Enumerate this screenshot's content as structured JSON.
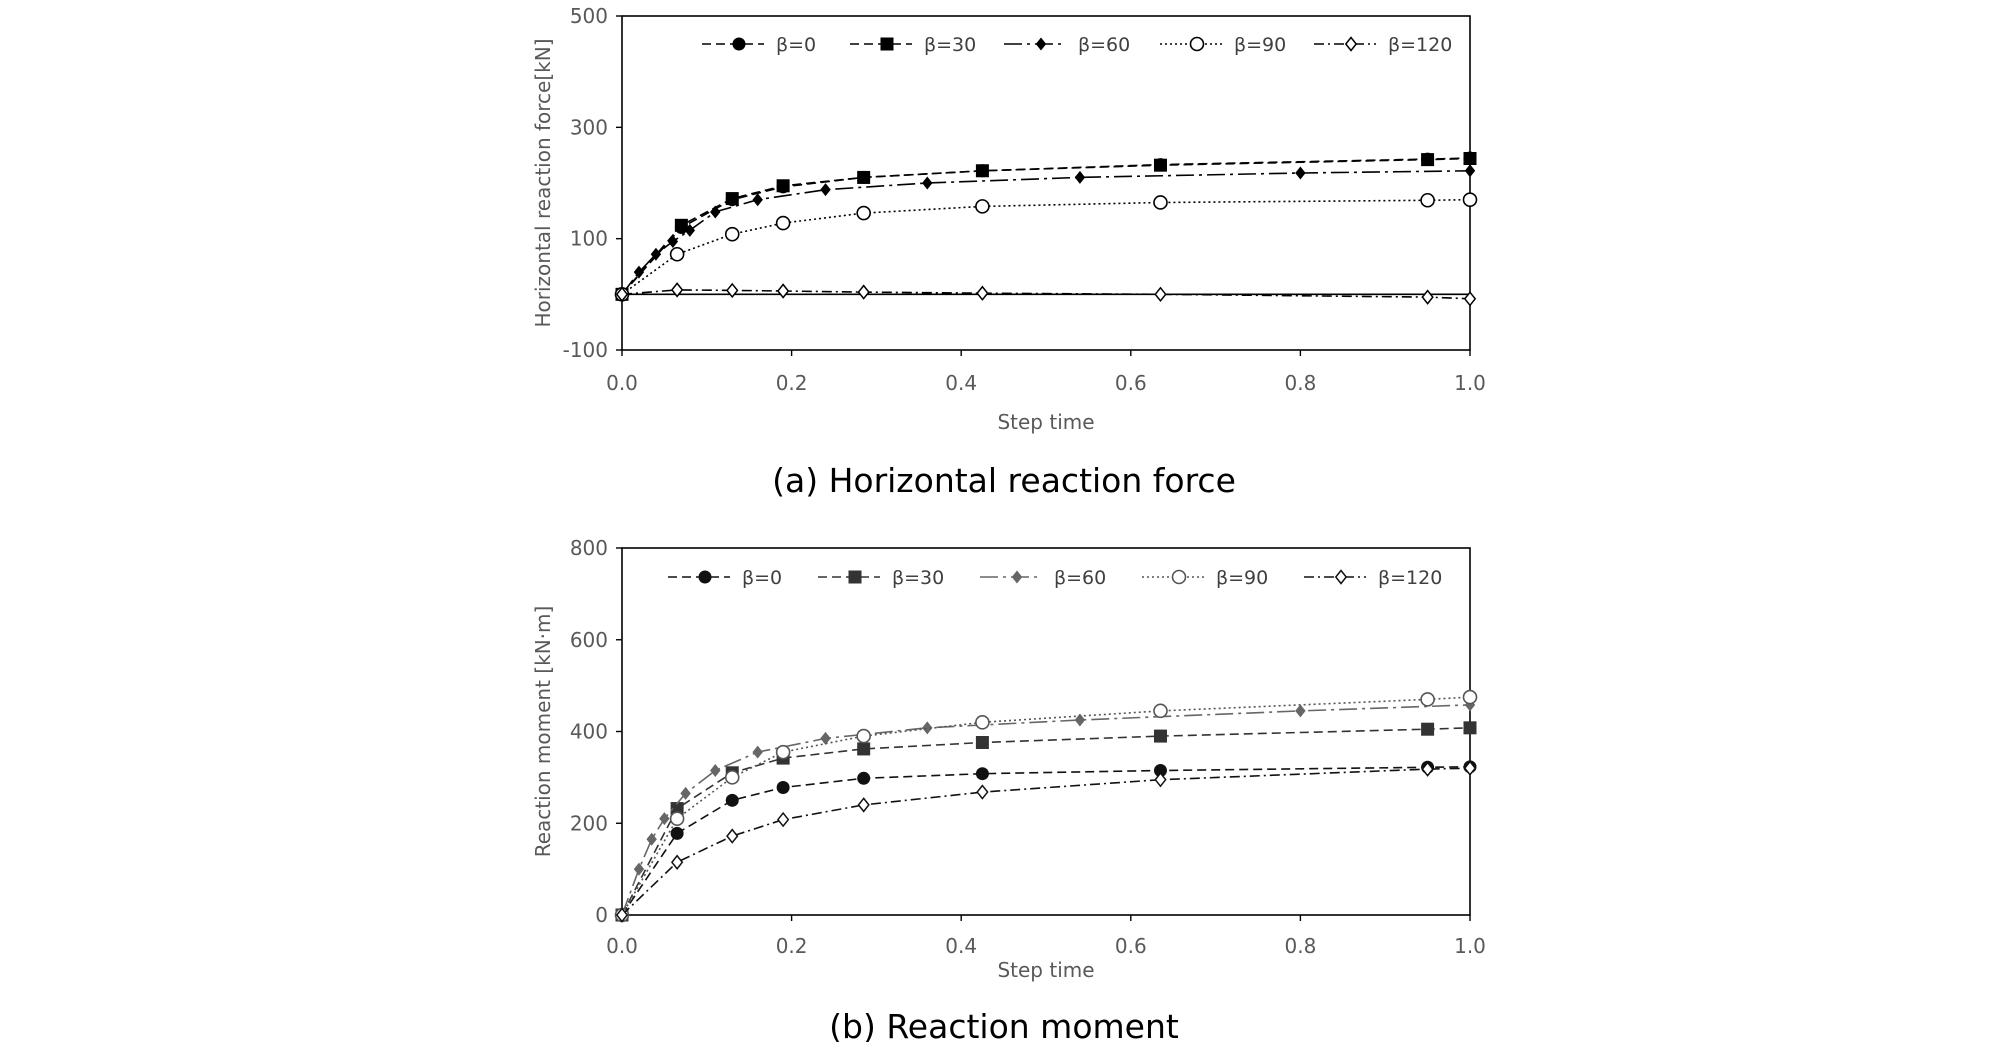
{
  "chart_data": [
    {
      "type": "line",
      "caption": "(a) Horizontal reaction force",
      "xlabel": "Step time",
      "ylabel": "Horizontal reaction force[kN]",
      "xlim": [
        0.0,
        1.0
      ],
      "ylim": [
        -100,
        500
      ],
      "xticks": [
        "0.0",
        "0.2",
        "0.4",
        "0.6",
        "0.8",
        "1.0"
      ],
      "yticks": [
        "-100",
        "100",
        "300",
        "500"
      ],
      "grid": false,
      "legend": "top",
      "series": [
        {
          "name": "β=0",
          "marker": "filled-circle",
          "dash": "dashed",
          "x": [
            0,
            0.07,
            0.13,
            0.19,
            0.285,
            0.425,
            0.635,
            0.95,
            1.0
          ],
          "y": [
            0,
            120,
            170,
            193,
            210,
            222,
            233,
            243,
            245
          ]
        },
        {
          "name": "β=30",
          "marker": "filled-square",
          "dash": "dashed",
          "x": [
            0,
            0.07,
            0.13,
            0.19,
            0.285,
            0.425,
            0.635,
            0.95,
            1.0
          ],
          "y": [
            0,
            124,
            172,
            195,
            210,
            222,
            232,
            242,
            244
          ]
        },
        {
          "name": "β=60",
          "marker": "filled-diamond",
          "dash": "longdash-dot",
          "x": [
            0,
            0.02,
            0.04,
            0.06,
            0.08,
            0.11,
            0.16,
            0.24,
            0.36,
            0.54,
            0.8,
            1.0
          ],
          "y": [
            0,
            40,
            72,
            95,
            115,
            148,
            170,
            188,
            200,
            210,
            218,
            222
          ]
        },
        {
          "name": "β=90",
          "marker": "open-circle",
          "dash": "dotted",
          "x": [
            0,
            0.065,
            0.13,
            0.19,
            0.285,
            0.425,
            0.635,
            0.95,
            1.0
          ],
          "y": [
            0,
            72,
            108,
            128,
            146,
            158,
            165,
            169,
            170
          ]
        },
        {
          "name": "β=120",
          "marker": "open-diamond",
          "dash": "dash-dot",
          "x": [
            0,
            0.065,
            0.13,
            0.19,
            0.285,
            0.425,
            0.635,
            0.95,
            1.0
          ],
          "y": [
            0,
            8,
            7,
            6,
            4,
            2,
            0,
            -5,
            -8
          ]
        }
      ]
    },
    {
      "type": "line",
      "caption": "(b) Reaction moment",
      "xlabel": "Step time",
      "ylabel": "Reaction moment [kN·m]",
      "xlim": [
        0.0,
        1.0
      ],
      "ylim": [
        0,
        800
      ],
      "xticks": [
        "0.0",
        "0.2",
        "0.4",
        "0.6",
        "0.8",
        "1.0"
      ],
      "yticks": [
        "0",
        "200",
        "400",
        "600",
        "800"
      ],
      "grid": false,
      "legend": "top",
      "series": [
        {
          "name": "β=0",
          "marker": "filled-circle",
          "dash": "dashed",
          "x": [
            0,
            0.065,
            0.13,
            0.19,
            0.285,
            0.425,
            0.635,
            0.95,
            1.0
          ],
          "y": [
            0,
            178,
            250,
            278,
            298,
            308,
            315,
            322,
            323
          ]
        },
        {
          "name": "β=30",
          "marker": "filled-square",
          "dash": "dashed",
          "x": [
            0,
            0.065,
            0.13,
            0.19,
            0.285,
            0.425,
            0.635,
            0.95,
            1.0
          ],
          "y": [
            0,
            232,
            310,
            342,
            362,
            376,
            390,
            405,
            408
          ]
        },
        {
          "name": "β=60",
          "marker": "filled-diamond",
          "dash": "longdash-dot",
          "x": [
            0,
            0.02,
            0.035,
            0.05,
            0.075,
            0.11,
            0.16,
            0.24,
            0.36,
            0.54,
            0.8,
            1.0
          ],
          "y": [
            0,
            100,
            165,
            210,
            265,
            315,
            355,
            385,
            408,
            425,
            445,
            458
          ]
        },
        {
          "name": "β=90",
          "marker": "open-circle",
          "dash": "dotted",
          "x": [
            0,
            0.065,
            0.13,
            0.19,
            0.285,
            0.425,
            0.635,
            0.95,
            1.0
          ],
          "y": [
            0,
            210,
            300,
            355,
            390,
            420,
            445,
            470,
            475
          ]
        },
        {
          "name": "β=120",
          "marker": "open-diamond",
          "dash": "dash-dot",
          "x": [
            0,
            0.065,
            0.13,
            0.19,
            0.285,
            0.425,
            0.635,
            0.95,
            1.0
          ],
          "y": [
            0,
            115,
            172,
            208,
            240,
            268,
            295,
            318,
            320
          ]
        }
      ]
    }
  ]
}
